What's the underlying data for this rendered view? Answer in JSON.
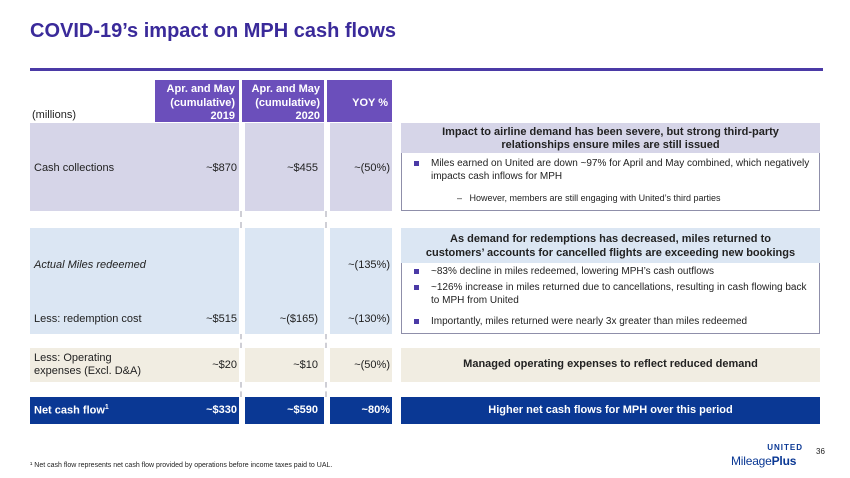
{
  "title": "COVID-19’s impact on MPH cash flows",
  "table": {
    "units": "(millions)",
    "col1_header": [
      "Apr. and May",
      "(cumulative)",
      "2019"
    ],
    "col2_header": [
      "Apr. and May",
      "(cumulative)",
      "2020"
    ],
    "col3_header": "YOY %",
    "rows": {
      "cash": {
        "label": "Cash collections",
        "v2019": "~$870",
        "v2020": "~$455",
        "yoy": "~(50%)"
      },
      "miles": {
        "label": "Actual Miles redeemed",
        "v2019": "",
        "v2020": "",
        "yoy": "~(135%)"
      },
      "redemption": {
        "label": "Less: redemption cost",
        "v2019": "~$515",
        "v2020": "~($165)",
        "yoy": "~(130%)"
      },
      "opex": {
        "label_line1": "Less: Operating",
        "label_line2": "expenses (Excl. D&A)",
        "v2019": "~$20",
        "v2020": "~$10",
        "yoy": "~(50%)"
      },
      "net": {
        "label": "Net cash flow",
        "label_sup": "1",
        "v2019": "~$330",
        "v2020": "~$590",
        "yoy": "~80%"
      }
    }
  },
  "panels": {
    "impact": {
      "heading_line1": "Impact to airline demand has been severe, but strong third-party",
      "heading_line2": "relationships ensure miles are still issued",
      "bullet1": "Miles earned on United are down ~97% for April and May combined, which negatively impacts cash inflows for MPH",
      "sub_dash": "–",
      "sub1": "However, members are still engaging with United’s third parties"
    },
    "redemptions": {
      "heading_line1": "As demand for redemptions has decreased, miles returned to",
      "heading_line2": "customers’ accounts for cancelled flights are exceeding new bookings",
      "bullet1": "~83% decline in miles redeemed, lowering MPH’s cash outflows",
      "bullet2": "~126% increase in miles returned due to cancellations, resulting in cash flowing back to MPH from United",
      "bullet3": "Importantly, miles returned were nearly 3x greater than miles redeemed"
    },
    "opex": {
      "heading": "Managed operating expenses to reflect reduced demand"
    },
    "net": {
      "heading": "Higher net cash flows for MPH over this period"
    }
  },
  "footnote": "¹ Net cash flow represents net cash flow provided by operations before income taxes paid to UAL.",
  "page_number": "36",
  "logo": {
    "top": "UNITED",
    "main_light": "Mileage",
    "main_bold": "Plus"
  },
  "colors": {
    "title": "#3a2a9a",
    "header": "#6b4fbb",
    "net_band": "#0a3894"
  }
}
